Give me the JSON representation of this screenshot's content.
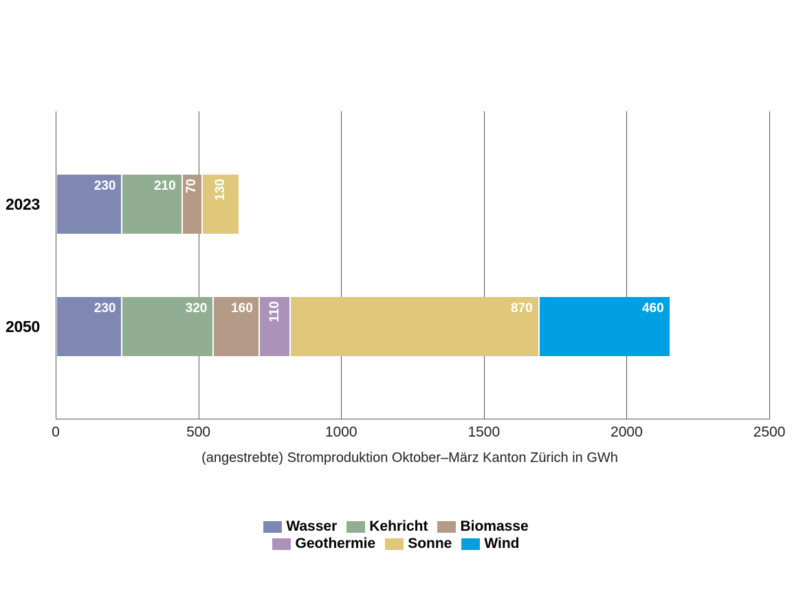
{
  "chart_data": {
    "type": "bar",
    "orientation": "horizontal",
    "stacked": true,
    "title": "",
    "xlabel": "(angestrebte) Stromproduktion Oktober–März Kanton Zürich in GWh",
    "ylabel": "",
    "xlim": [
      0,
      2500
    ],
    "xticks": [
      0,
      500,
      1000,
      1500,
      2000,
      2500
    ],
    "xtick_labels": [
      "0",
      "500",
      "1000",
      "1500",
      "2000",
      "2500"
    ],
    "grid": "vertical lines at each x tick",
    "categories": [
      "2023",
      "2050"
    ],
    "series": [
      {
        "name": "Wasser",
        "color": "#7f88b3",
        "values": [
          230,
          230
        ]
      },
      {
        "name": "Kehricht",
        "color": "#92ae92",
        "values": [
          210,
          320
        ]
      },
      {
        "name": "Biomasse",
        "color": "#b59a88",
        "values": [
          70,
          160
        ]
      },
      {
        "name": "Geothermie",
        "color": "#ac92b8",
        "values": [
          0,
          110
        ]
      },
      {
        "name": "Sonne",
        "color": "#dfc87a",
        "values": [
          130,
          870
        ]
      },
      {
        "name": "Wind",
        "color": "#00a0e2",
        "values": [
          0,
          460
        ]
      }
    ],
    "legend": {
      "position": "bottom-center",
      "rows": [
        [
          "Wasser",
          "Kehricht",
          "Biomasse"
        ],
        [
          "Geothermie",
          "Sonne",
          "Wind"
        ]
      ]
    }
  },
  "rows": [
    {
      "label": "2023",
      "segments": [
        {
          "name": "Wasser",
          "value": 230,
          "label": "230",
          "rotated": false
        },
        {
          "name": "Kehricht",
          "value": 210,
          "label": "210",
          "rotated": false
        },
        {
          "name": "Biomasse",
          "value": 70,
          "label": "70",
          "rotated": true
        },
        {
          "name": "Sonne",
          "value": 130,
          "label": "130",
          "rotated": true
        }
      ]
    },
    {
      "label": "2050",
      "segments": [
        {
          "name": "Wasser",
          "value": 230,
          "label": "230",
          "rotated": false
        },
        {
          "name": "Kehricht",
          "value": 320,
          "label": "320",
          "rotated": false
        },
        {
          "name": "Biomasse",
          "value": 160,
          "label": "160",
          "rotated": false
        },
        {
          "name": "Geothermie",
          "value": 110,
          "label": "110",
          "rotated": true
        },
        {
          "name": "Sonne",
          "value": 870,
          "label": "870",
          "rotated": false
        },
        {
          "name": "Wind",
          "value": 460,
          "label": "460",
          "rotated": false
        }
      ]
    }
  ],
  "colors": {
    "Wasser": "#7f88b3",
    "Kehricht": "#92ae92",
    "Biomasse": "#b59a88",
    "Geothermie": "#ac92b8",
    "Sonne": "#dfc87a",
    "Wind": "#00a0e2"
  }
}
